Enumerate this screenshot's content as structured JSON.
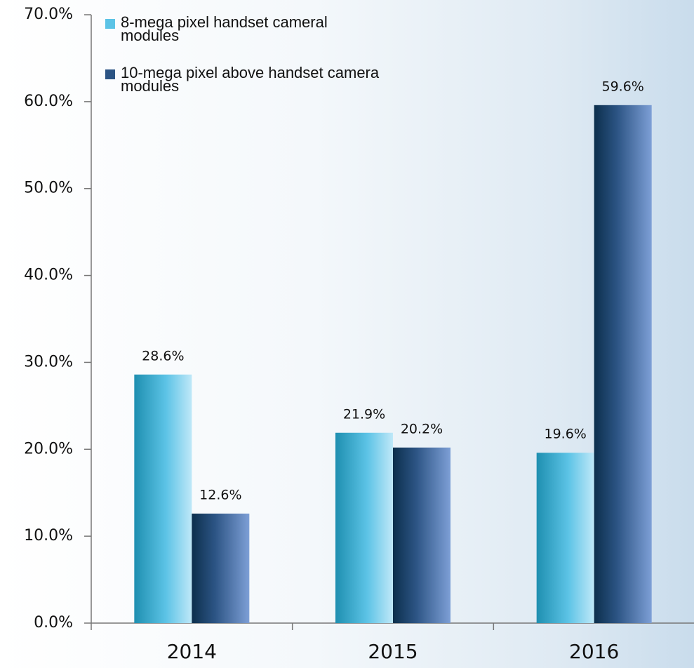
{
  "chart_data": {
    "type": "bar",
    "categories": [
      "2014",
      "2015",
      "2016"
    ],
    "series": [
      {
        "name": "8-mega pixel handset cameral modules",
        "color": "#5cc3e6",
        "values": [
          28.6,
          21.9,
          19.6
        ],
        "value_labels": [
          "28.6%",
          "21.9%",
          "19.6%"
        ]
      },
      {
        "name": "10-mega pixel above handset camera modules",
        "color": "#2c5484",
        "values": [
          12.6,
          20.2,
          59.6
        ],
        "value_labels": [
          "12.6%",
          "20.2%",
          "59.6%"
        ]
      }
    ],
    "ylim": [
      0,
      70
    ],
    "yticks": [
      {
        "value": 0,
        "label": "0.0%"
      },
      {
        "value": 10,
        "label": "10.0%"
      },
      {
        "value": 20,
        "label": "20.0%"
      },
      {
        "value": 30,
        "label": "30.0%"
      },
      {
        "value": 40,
        "label": "40.0%"
      },
      {
        "value": 50,
        "label": "50.0%"
      },
      {
        "value": 60,
        "label": "60.0%"
      },
      {
        "value": 70,
        "label": "70.0%"
      }
    ],
    "grid": false,
    "legend": "top-left"
  }
}
